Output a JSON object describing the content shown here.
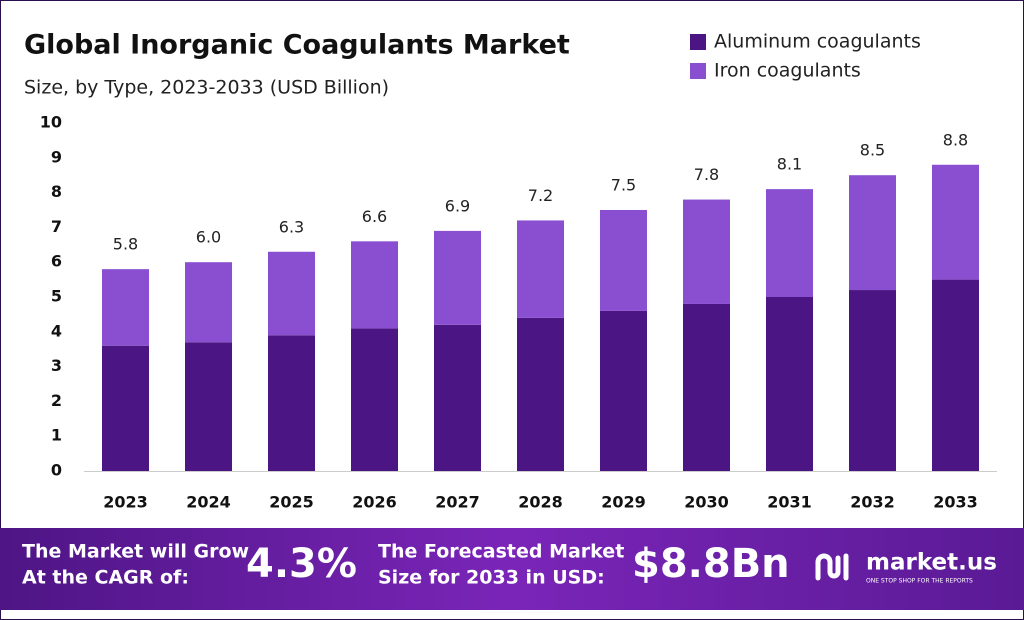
{
  "chart_data": {
    "type": "stacked_bar",
    "title": "Global Inorganic Coagulants Market",
    "subtitle": "Size, by Type, 2023-2033 (USD Billion)",
    "categories": [
      "2023",
      "2024",
      "2025",
      "2026",
      "2027",
      "2028",
      "2029",
      "2030",
      "2031",
      "2032",
      "2033"
    ],
    "series": [
      {
        "name": "Aluminum coagulants",
        "color": "#4b1683",
        "values": [
          3.6,
          3.7,
          3.9,
          4.1,
          4.2,
          4.4,
          4.6,
          4.8,
          5.0,
          5.2,
          5.5
        ]
      },
      {
        "name": "Iron coagulants",
        "color": "#8a4fd0",
        "values": [
          2.2,
          2.3,
          2.4,
          2.5,
          2.7,
          2.8,
          2.9,
          3.0,
          3.1,
          3.3,
          3.3
        ]
      }
    ],
    "totals": {
      "values": [
        5.8,
        6.0,
        6.3,
        6.6,
        6.9,
        7.2,
        7.5,
        7.8,
        8.1,
        8.5,
        8.8
      ],
      "value_labels": [
        "5.8",
        "6.0",
        "6.3",
        "6.6",
        "6.9",
        "7.2",
        "7.5",
        "7.8",
        "8.1",
        "8.5",
        "8.8"
      ]
    },
    "ylim": [
      0,
      10
    ],
    "yticks": [
      0,
      1,
      2,
      3,
      4,
      5,
      6,
      7,
      8,
      9,
      10
    ],
    "grid": false,
    "legend": "top-right"
  },
  "footer": {
    "cagr_text": [
      "The Market will Grow",
      "At the CAGR of:"
    ],
    "cagr_value": "4.3%",
    "forecast_text": [
      "The Forecasted Market",
      "Size for 2033 in USD:"
    ],
    "forecast_value": "$8.8Bn",
    "brand": "market.us",
    "tagline": "ONE STOP SHOP FOR THE REPORTS"
  }
}
